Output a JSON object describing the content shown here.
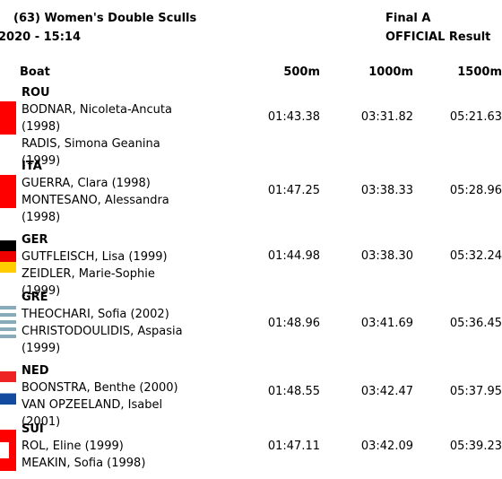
{
  "header": {
    "title": "(63) Women's Double Sculls",
    "phase": "Final A",
    "date": "2020 - 15:14",
    "status": "OFFICIAL Result"
  },
  "columns": [
    "Boat",
    "500m",
    "1000m",
    "1500m"
  ],
  "crews": [
    {
      "country": "ROU",
      "rowers": [
        "BODNAR, Nicoleta-Ancuta (1998)",
        "RADIS, Simona Geanina (1999)"
      ],
      "times": [
        "01:43.38",
        "03:31.82",
        "05:21.63"
      ]
    },
    {
      "country": "ITA",
      "rowers": [
        "GUERRA, Clara (1998)",
        "MONTESANO, Alessandra (1998)"
      ],
      "times": [
        "01:47.25",
        "03:38.33",
        "05:28.96"
      ]
    },
    {
      "country": "GER",
      "rowers": [
        "GUTFLEISCH, Lisa (1999)",
        "ZEIDLER, Marie-Sophie (1999)"
      ],
      "times": [
        "01:44.98",
        "03:38.30",
        "05:32.24"
      ]
    },
    {
      "country": "GRE",
      "rowers": [
        "THEOCHARI, Sofia (2002)",
        "CHRISTODOULIDIS, Aspasia (1999)"
      ],
      "times": [
        "01:48.96",
        "03:41.69",
        "05:36.45"
      ]
    },
    {
      "country": "NED",
      "rowers": [
        "BOONSTRA, Benthe (2000)",
        "VAN OPZEELAND, Isabel (2001)"
      ],
      "times": [
        "01:48.55",
        "03:42.47",
        "05:37.95"
      ]
    },
    {
      "country": "SUI",
      "rowers": [
        "ROL, Eline (1999)",
        "MEAKIN, Sofia (1998)"
      ],
      "times": [
        "01:47.11",
        "03:42.09",
        "05:39.23"
      ]
    }
  ]
}
